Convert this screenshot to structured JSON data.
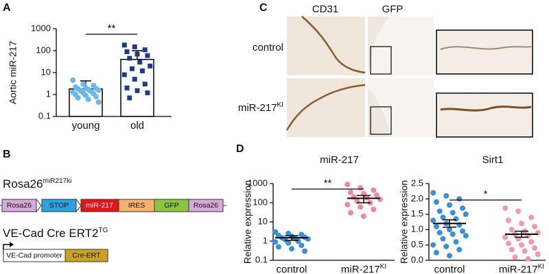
{
  "panels": [
    "A",
    "B",
    "C",
    "D"
  ],
  "chart_data": [
    {
      "type": "bar",
      "ylabel": "Aortic miR-217",
      "categories": [
        "young",
        "old"
      ],
      "category_superscripts": [
        null,
        null
      ],
      "log": true,
      "ylim": [
        0.1,
        1000
      ],
      "yticks": [
        0.1,
        1,
        10,
        100,
        1000
      ],
      "significance": "**",
      "groups": [
        {
          "color": "#6cb8e6",
          "marker": "circle",
          "mean": 1.8,
          "error": 2.4,
          "values": [
            4.5,
            3.0,
            2.6,
            2.2,
            2.0,
            1.9,
            1.8,
            1.7,
            1.6,
            1.5,
            1.4,
            1.3,
            1.2,
            1.1,
            1.0,
            0.9,
            0.8,
            0.7,
            0.6,
            0.45
          ]
        },
        {
          "color": "#1f3a8a",
          "marker": "square",
          "mean": 40,
          "error": 60,
          "values": [
            180,
            150,
            110,
            90,
            70,
            60,
            45,
            30,
            20,
            15,
            12,
            8,
            5,
            3,
            2,
            1.5,
            1.2,
            0.7
          ]
        }
      ]
    },
    {
      "type": "dot",
      "title": "miR-217",
      "ylabel": "Relative expression",
      "categories": [
        "control",
        "miR-217"
      ],
      "category_superscripts": [
        null,
        "KI"
      ],
      "log": true,
      "ylim": [
        0.1,
        1000
      ],
      "yticks": [
        0.1,
        1,
        10,
        100,
        1000
      ],
      "significance": "**",
      "groups": [
        {
          "color": "#3a8fd6",
          "marker": "circle",
          "mean": 1.5,
          "error": 0.4,
          "values": [
            3.0,
            2.5,
            2.2,
            2.0,
            1.8,
            1.6,
            1.5,
            1.4,
            1.3,
            1.2,
            1.0,
            0.9,
            0.8,
            0.6,
            0.5,
            0.4,
            0.3
          ]
        },
        {
          "color": "#f08a9a",
          "marker": "circle",
          "mean": 170,
          "error": 70,
          "values": [
            900,
            600,
            450,
            350,
            300,
            250,
            200,
            180,
            150,
            120,
            100,
            80,
            60,
            45,
            30,
            20
          ]
        }
      ]
    },
    {
      "type": "dot",
      "title": "Sirt1",
      "ylabel": "Relative expression",
      "categories": [
        "control",
        "miR-217"
      ],
      "category_superscripts": [
        null,
        "KI"
      ],
      "log": false,
      "ylim": [
        0,
        2.5
      ],
      "yticks": [
        {
          "value": 0,
          "label": "0.0"
        },
        0.5,
        {
          "value": 1,
          "label": "1.0"
        },
        1.5,
        {
          "value": 2,
          "label": "2.0"
        },
        2.5
      ],
      "significance": "*",
      "groups": [
        {
          "color": "#3a8fd6",
          "marker": "circle",
          "mean": 1.2,
          "error": 0.12,
          "values": [
            2.2,
            2.1,
            2.0,
            1.9,
            1.8,
            1.7,
            1.6,
            1.55,
            1.5,
            1.4,
            1.35,
            1.3,
            1.2,
            1.15,
            1.1,
            1.0,
            0.95,
            0.9,
            0.85,
            0.8,
            0.7,
            0.6,
            0.5,
            0.45,
            0.35,
            0.25,
            0.15
          ]
        },
        {
          "color": "#f29aa8",
          "marker": "circle",
          "mean": 0.85,
          "error": 0.1,
          "values": [
            1.7,
            1.6,
            1.4,
            1.3,
            1.2,
            1.1,
            1.0,
            0.95,
            0.9,
            0.85,
            0.8,
            0.75,
            0.7,
            0.6,
            0.55,
            0.5,
            0.4,
            0.35,
            0.3,
            0.2,
            0.1,
            0.05
          ]
        }
      ]
    }
  ],
  "diagram": {
    "allele1": {
      "name": "Rosa26",
      "superscript": "miR217ki",
      "elements": [
        "Rosa26",
        "STOP",
        "miR-217",
        "IRES",
        "GFP",
        "Rosa26"
      ]
    },
    "allele2": {
      "name": "VE-Cad Cre ERT2",
      "superscript": "TG",
      "elements": [
        "VE-Cad promoter",
        "Cre-ERT"
      ]
    }
  },
  "images": {
    "columns": [
      "CD31",
      "GFP"
    ],
    "rows": [
      {
        "label": "control",
        "superscript": null
      },
      {
        "label": "miR-217",
        "superscript": "KI"
      }
    ]
  }
}
